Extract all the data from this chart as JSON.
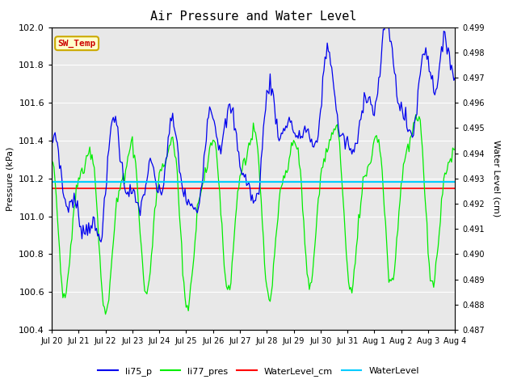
{
  "title": "Air Pressure and Water Level",
  "ylabel_left": "Pressure (kPa)",
  "ylabel_right": "Water Level (cm)",
  "ylim_left": [
    100.4,
    102.0
  ],
  "ylim_right": [
    0.487,
    0.499
  ],
  "xtick_labels": [
    "Jul 20",
    "Jul 21",
    "Jul 22",
    "Jul 23",
    "Jul 24",
    "Jul 25",
    "Jul 26",
    "Jul 27",
    "Jul 28",
    "Jul 29",
    "Jul 30",
    "Jul 31",
    "Aug 1",
    "Aug 2",
    "Aug 3",
    "Aug 4"
  ],
  "yticks_left": [
    100.4,
    100.6,
    100.8,
    101.0,
    101.2,
    101.4,
    101.6,
    101.8,
    102.0
  ],
  "yticks_right": [
    0.487,
    0.488,
    0.489,
    0.49,
    0.491,
    0.492,
    0.493,
    0.494,
    0.495,
    0.496,
    0.497,
    0.498,
    0.499
  ],
  "color_li75": "#0000ee",
  "color_li77": "#00ee00",
  "color_wl_cm": "#ff0000",
  "color_wl": "#00ccff",
  "legend_labels": [
    "li75_p",
    "li77_pres",
    "WaterLevel_cm",
    "WaterLevel"
  ],
  "annotation_text": "SW_Temp",
  "annotation_color": "#cc0000",
  "annotation_bg": "#ffffcc",
  "annotation_border": "#ccaa00",
  "plot_bg": "#e8e8e8",
  "fig_bg": "#ffffff",
  "title_fontsize": 11,
  "wl_value": 101.18,
  "wl_cm_value": 101.15
}
